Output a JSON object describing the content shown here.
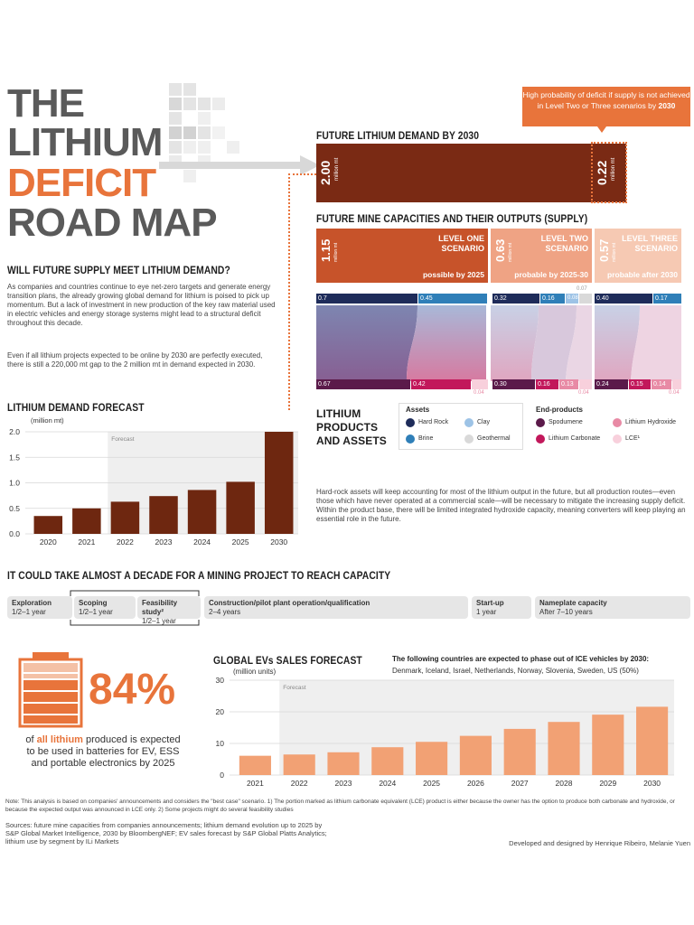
{
  "title": {
    "line1": "THE",
    "line2": "LITHIUM",
    "line3": "DEFICIT",
    "line4": "ROAD MAP"
  },
  "callout": {
    "pre": "High probability of deficit if supply is not achieved in Level Two or Three scenarios by ",
    "year": "2030"
  },
  "demand": {
    "heading": "FUTURE LITHIUM DEMAND BY 2030",
    "value": "2.00",
    "unit": "million mt",
    "gap_value": "0.22",
    "gap_unit": "million mt"
  },
  "supply": {
    "heading": "FUTURE MINE CAPACITIES AND THEIR OUTPUTS (SUPPLY)",
    "unit": "million mt",
    "levels": [
      {
        "value": "1.15",
        "name": "LEVEL ONE SCENARIO",
        "timing": "possible by 2025",
        "color": "#c7532a"
      },
      {
        "value": "0.63",
        "name": "LEVEL TWO SCENARIO",
        "timing": "probable by 2025-30",
        "color": "#efa384"
      },
      {
        "value": "0.57",
        "name": "LEVEL THREE SCENARIO",
        "timing": "probable after 2030",
        "color": "#f6c9b3"
      }
    ],
    "assets_top": [
      {
        "v": "0.7",
        "c": "#1e2c5a"
      },
      {
        "v": "0.45",
        "c": "#2f7fb8"
      },
      {
        "v": "0.32",
        "c": "#1e2c5a"
      },
      {
        "v": "0.16",
        "c": "#2f7fb8"
      },
      {
        "v": "0.08",
        "c": "#9dc3e6"
      },
      {
        "v": "0.40",
        "c": "#1e2c5a"
      },
      {
        "v": "0.17",
        "c": "#2f7fb8"
      }
    ],
    "top_small": "0.07",
    "products_bottom": [
      {
        "v": "0.67",
        "c": "#5b1a4a"
      },
      {
        "v": "0.42",
        "c": "#c2185b"
      },
      {
        "v": "0.30",
        "c": "#5b1a4a"
      },
      {
        "v": "0.16",
        "c": "#c2185b"
      },
      {
        "v": "0.13",
        "c": "#e88aa5"
      },
      {
        "v": "0.24",
        "c": "#5b1a4a"
      },
      {
        "v": "0.15",
        "c": "#c2185b"
      },
      {
        "v": "0.14",
        "c": "#e88aa5"
      }
    ],
    "bottom_small": [
      "0.04",
      "0.04",
      "0.04"
    ]
  },
  "intro": {
    "heading": "WILL FUTURE SUPPLY MEET LITHIUM DEMAND?",
    "p1": "As companies and countries continue to eye net-zero targets and generate energy transition plans, the already growing global demand for lithium is poised to pick up momentum. But a lack of investment in new production of the key raw material used in electric vehicles and energy storage systems might lead to a structural deficit throughout this decade.",
    "p2": "Even if all lithium projects expected to be online by 2030 are perfectly executed, there is still a 220,000 mt gap to the 2 million mt in demand expected in 2030."
  },
  "legend": {
    "heading1": "LITHIUM",
    "heading2": "PRODUCTS",
    "heading3": "AND ASSETS",
    "assets_title": "Assets",
    "assets": [
      {
        "label": "Hard Rock",
        "color": "#1e2c5a"
      },
      {
        "label": "Clay",
        "color": "#9dc3e6"
      },
      {
        "label": "Brine",
        "color": "#2f7fb8"
      },
      {
        "label": "Geothermal",
        "color": "#d9d9d9"
      }
    ],
    "products_title": "End-products",
    "products": [
      {
        "label": "Spodumene",
        "color": "#5b1a4a"
      },
      {
        "label": "Lithium Hydroxide",
        "color": "#e88aa5"
      },
      {
        "label": "Lithium Carbonate",
        "color": "#c2185b"
      },
      {
        "label": "LCE¹",
        "color": "#f8d0dc"
      }
    ]
  },
  "right_text": "Hard-rock assets will keep accounting for most of the lithium output in the future, but all production routes—even those which have never operated at a commercial scale—will be necessary to mitigate the increasing supply deficit. Within the product base, there will be limited integrated hydroxide capacity, meaning converters will keep playing an essential role in the future.",
  "timeline": {
    "heading": "IT COULD TAKE ALMOST A DECADE FOR A MINING PROJECT TO REACH CAPACITY",
    "steps": [
      {
        "name": "Exploration",
        "dur": "1/2–1 year"
      },
      {
        "name": "Scoping",
        "dur": "1/2–1 year"
      },
      {
        "name": "Feasibility study²",
        "dur": "1/2–1 year"
      },
      {
        "name": "Construction/pilot plant operation/qualification",
        "dur": "2–4 years"
      },
      {
        "name": "Start-up",
        "dur": "1 year"
      },
      {
        "name": "Nameplate capacity",
        "dur": "After 7–10 years"
      }
    ]
  },
  "battery": {
    "pct": "84%",
    "l1a": "of ",
    "l1b": "all lithium",
    "l1c": " produced is expected",
    "l2": "to be used in batteries for EV, ESS",
    "l3": "and portable electronics by 2025"
  },
  "ev_note": {
    "title": "The following countries are expected to phase out of ICE vehicles by 2030:",
    "list": "Denmark, Iceland, Israel, Netherlands, Norway, Slovenia, Sweden, US (50%)"
  },
  "footer": {
    "note": "Note: This analysis is based on companies' announcements and considers the \"best case\" scenario. 1) The portion marked as lithium carbonate equivalent (LCE) product is either because the owner has the option to produce both carbonate and hydroxide, or because the expected output was announced in LCE only. 2) Some projects might do several feasibility studies",
    "sources1": "Sources: future mine capacities from companies announcements; lithium demand evolution up to 2025 by",
    "sources2": "S&P Global Market Intelligence, 2030 by BloombergNEF; EV sales forecast by S&P Global Platts Analytics;",
    "sources3": "lithium use by segment by ILi Markets",
    "credit": "Developed and designed by Henrique Ribeiro, Melanie Yuen"
  },
  "colors": {
    "accent": "#e8743b",
    "demand": "#7a2a14",
    "ev": "#f2a174"
  },
  "chart_data": [
    {
      "type": "bar",
      "title": "LITHIUM DEMAND FORECAST",
      "ylabel": "(million mt)",
      "categories": [
        "2020",
        "2021",
        "2022",
        "2023",
        "2024",
        "2025",
        "2030"
      ],
      "values": [
        0.35,
        0.5,
        0.63,
        0.74,
        0.86,
        1.02,
        2.0
      ],
      "ylim": [
        0,
        2.0
      ],
      "yticks": [
        "0.0",
        "0.5",
        "1.0",
        "1.5",
        "2.0"
      ],
      "annotation": "Forecast",
      "forecast_from": "2022",
      "color": "#6e2710"
    },
    {
      "type": "bar",
      "title": "GLOBAL EVs SALES FORECAST",
      "ylabel": "(million units)",
      "categories": [
        "2021",
        "2022",
        "2023",
        "2024",
        "2025",
        "2026",
        "2027",
        "2028",
        "2029",
        "2030"
      ],
      "values": [
        6.1,
        6.5,
        7.2,
        8.8,
        10.5,
        12.4,
        14.6,
        16.8,
        19.1,
        21.6
      ],
      "ylim": [
        0,
        30
      ],
      "yticks": [
        "0",
        "10",
        "20",
        "30"
      ],
      "annotation": "Forecast",
      "forecast_from": "2022",
      "color": "#f2a174"
    }
  ]
}
